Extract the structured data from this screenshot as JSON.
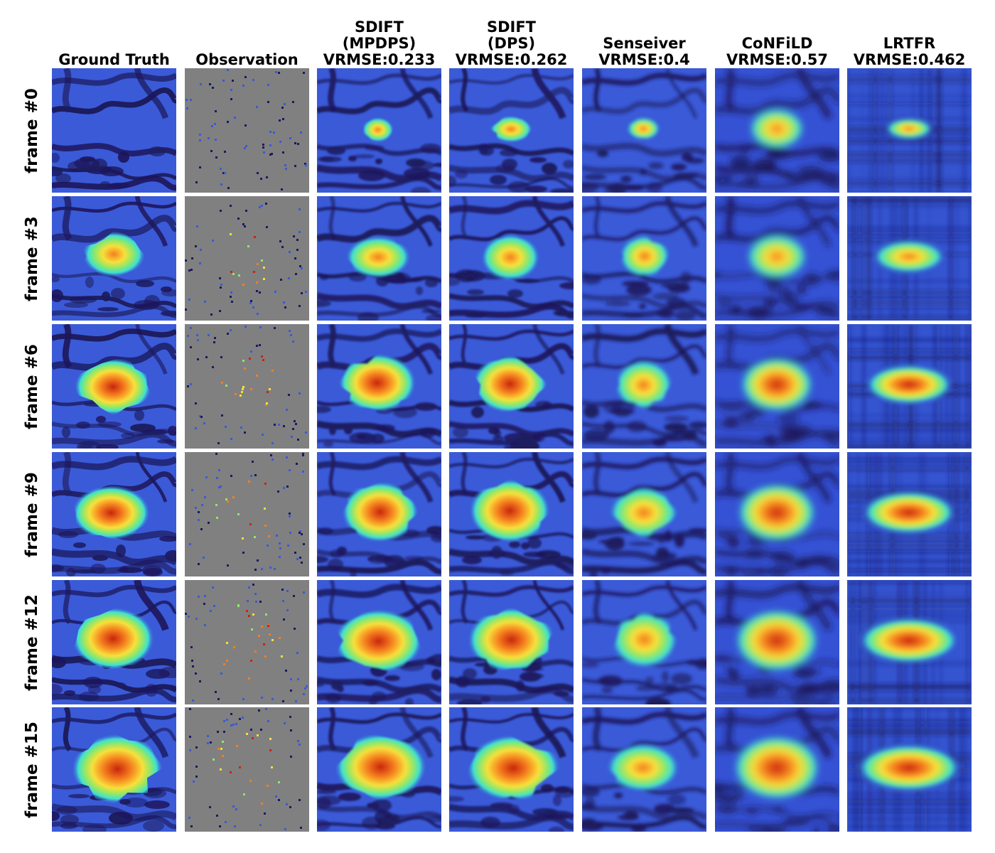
{
  "columns": [
    {
      "key": "gt",
      "lines": [
        "Ground Truth"
      ]
    },
    {
      "key": "obs",
      "lines": [
        "Observation"
      ]
    },
    {
      "key": "sdift_mp",
      "lines": [
        "SDIFT",
        "(MPDPS)",
        "VRMSE:0.233"
      ]
    },
    {
      "key": "sdift_dps",
      "lines": [
        "SDIFT",
        "(DPS)",
        "VRMSE:0.262"
      ]
    },
    {
      "key": "sense",
      "lines": [
        "Senseiver",
        "VRMSE:0.4"
      ]
    },
    {
      "key": "confild",
      "lines": [
        "CoNFiLD",
        "VRMSE:0.57"
      ]
    },
    {
      "key": "lrtfr",
      "lines": [
        "LRTFR",
        "VRMSE:0.462"
      ]
    }
  ],
  "rows": [
    {
      "label": "frame #0",
      "blob": 0.0
    },
    {
      "label": "frame #3",
      "blob": 0.55
    },
    {
      "label": "frame #6",
      "blob": 0.75
    },
    {
      "label": "frame #9",
      "blob": 0.85
    },
    {
      "label": "frame #12",
      "blob": 0.95
    },
    {
      "label": "frame #15",
      "blob": 1.0
    }
  ],
  "colors": {
    "background_blue": "#3a5ad8",
    "dark_blue": "#1c1a5e",
    "mid_blue": "#2f7de8",
    "cyan": "#3fe0d0",
    "green": "#8ee86a",
    "yellow": "#f8e03a",
    "orange": "#f57f1f",
    "red": "#c8250c",
    "observation_gray": "#808080"
  }
}
